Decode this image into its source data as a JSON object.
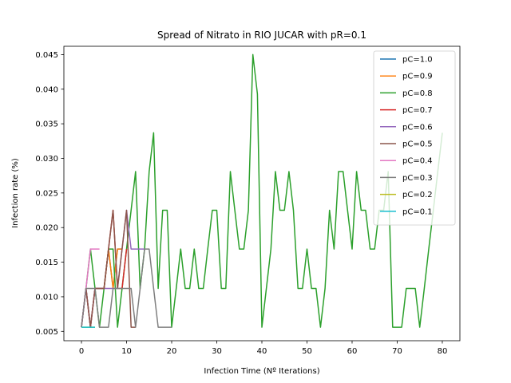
{
  "chart_data": {
    "type": "line",
    "title": "Spread of Nitrato in RIO JUCAR with pR=0.1",
    "xlabel": "Infection Time (Nº Iterations)",
    "ylabel": "Infection rate (%)",
    "xlim": [
      -3.9,
      83.9
    ],
    "ylim": [
      0.00365,
      0.0462
    ],
    "xticks": [
      0,
      10,
      20,
      30,
      40,
      50,
      60,
      70,
      80
    ],
    "yticks": [
      0.005,
      0.01,
      0.015,
      0.02,
      0.025,
      0.03,
      0.035,
      0.04,
      0.045
    ],
    "ytick_labels": [
      "0.005",
      "0.010",
      "0.015",
      "0.020",
      "0.025",
      "0.030",
      "0.035",
      "0.040",
      "0.045"
    ],
    "grid": false,
    "legend_position": "top-right",
    "series": [
      {
        "name": "pC=1.0",
        "color": "#1f77b4",
        "x": [
          0,
          1,
          2,
          3,
          4,
          5,
          6,
          7,
          8,
          9
        ],
        "y": [
          0.0056,
          0.0112,
          0.0056,
          0.0112,
          0.0112,
          0.0112,
          0.0169,
          0.0112,
          0.0169,
          0.0169
        ]
      },
      {
        "name": "pC=0.9",
        "color": "#ff7f0e",
        "x": [
          0,
          1,
          2,
          3,
          4,
          5,
          6,
          7,
          8,
          9
        ],
        "y": [
          0.0056,
          0.0112,
          0.0056,
          0.0112,
          0.0112,
          0.0112,
          0.0169,
          0.0112,
          0.0169,
          0.0169
        ]
      },
      {
        "name": "pC=0.8",
        "color": "#2ca02c",
        "x": [
          0,
          1,
          2,
          3,
          4,
          5,
          6,
          7,
          8,
          9,
          10,
          11,
          12,
          13,
          14,
          15,
          16,
          17,
          18,
          19,
          20,
          21,
          22,
          23,
          24,
          25,
          26,
          27,
          28,
          29,
          30,
          31,
          32,
          33,
          34,
          35,
          36,
          37,
          38,
          39,
          40,
          41,
          42,
          43,
          44,
          45,
          46,
          47,
          48,
          49,
          50,
          51,
          52,
          53,
          54,
          55,
          56,
          57,
          58,
          59,
          60,
          61,
          62,
          63,
          64,
          65,
          66,
          67,
          68,
          69,
          70,
          71,
          72,
          73,
          74,
          75,
          76,
          77,
          78,
          79,
          80
        ],
        "y": [
          0.0056,
          0.0112,
          0.0169,
          0.0112,
          0.0056,
          0.0112,
          0.0169,
          0.0169,
          0.0056,
          0.0112,
          0.0169,
          0.0225,
          0.0281,
          0.0112,
          0.0169,
          0.0281,
          0.0337,
          0.0112,
          0.0225,
          0.0225,
          0.0056,
          0.0112,
          0.0169,
          0.0112,
          0.0112,
          0.0169,
          0.0112,
          0.0112,
          0.0169,
          0.0225,
          0.0225,
          0.0112,
          0.0112,
          0.0281,
          0.0225,
          0.0169,
          0.0169,
          0.0225,
          0.045,
          0.0393,
          0.0056,
          0.0112,
          0.0169,
          0.0281,
          0.0225,
          0.0225,
          0.0281,
          0.0225,
          0.0112,
          0.0112,
          0.0169,
          0.0112,
          0.0112,
          0.0056,
          0.0112,
          0.0225,
          0.0169,
          0.0281,
          0.0281,
          0.0225,
          0.0169,
          0.0281,
          0.0225,
          0.0225,
          0.0169,
          0.0169,
          0.0225,
          0.0225,
          0.0281,
          0.0056,
          0.0056,
          0.0056,
          0.0112,
          0.0112,
          0.0112,
          0.0056,
          0.0112,
          0.0169,
          0.0225,
          0.0281,
          0.0337
        ]
      },
      {
        "name": "pC=0.7",
        "color": "#d62728",
        "x": [
          0,
          1,
          2,
          3,
          4,
          5,
          6,
          7,
          8,
          9,
          10
        ],
        "y": [
          0.0056,
          0.0112,
          0.0056,
          0.0112,
          0.0112,
          0.0112,
          0.0169,
          0.0225,
          0.0112,
          0.0112,
          0.0169
        ]
      },
      {
        "name": "pC=0.6",
        "color": "#9467bd",
        "x": [
          0,
          1,
          2,
          3,
          4,
          5,
          6,
          7,
          8,
          9,
          10,
          11,
          12,
          13,
          14
        ],
        "y": [
          0.0056,
          0.0112,
          0.0056,
          0.0112,
          0.0112,
          0.0112,
          0.0112,
          0.0112,
          0.0112,
          0.0169,
          0.0225,
          0.0169,
          0.0169,
          0.0169,
          0.0169
        ]
      },
      {
        "name": "pC=0.5",
        "color": "#8c564b",
        "x": [
          0,
          1,
          2,
          3,
          4,
          5,
          6,
          7,
          8,
          9,
          10,
          11,
          12
        ],
        "y": [
          0.0056,
          0.0112,
          0.0056,
          0.0112,
          0.0112,
          0.0112,
          0.0169,
          0.0225,
          0.0112,
          0.0169,
          0.0225,
          0.0056,
          0.0056
        ]
      },
      {
        "name": "pC=0.4",
        "color": "#e377c2",
        "x": [
          0,
          1,
          2,
          3,
          4
        ],
        "y": [
          0.0056,
          0.0112,
          0.0169,
          0.0169,
          0.0169
        ]
      },
      {
        "name": "pC=0.3",
        "color": "#7f7f7f",
        "x": [
          0,
          1,
          2,
          3,
          4,
          5,
          6,
          7,
          8,
          9,
          10,
          11,
          12,
          13,
          14,
          15,
          16,
          17,
          18,
          19,
          20
        ],
        "y": [
          0.0056,
          0.0112,
          0.0112,
          0.0112,
          0.0056,
          0.0056,
          0.0056,
          0.0112,
          0.0112,
          0.0112,
          0.0112,
          0.0112,
          0.0056,
          0.0112,
          0.0169,
          0.0169,
          0.0112,
          0.0056,
          0.0056,
          0.0056,
          0.0056
        ]
      },
      {
        "name": "pC=0.2",
        "color": "#bcbd22",
        "x": [
          0,
          1,
          2,
          3
        ],
        "y": [
          0.0056,
          0.0056,
          0.0056,
          0.0056
        ]
      },
      {
        "name": "pC=0.1",
        "color": "#17becf",
        "x": [
          0,
          1,
          2,
          3
        ],
        "y": [
          0.0056,
          0.0056,
          0.0056,
          0.0056
        ]
      }
    ]
  }
}
